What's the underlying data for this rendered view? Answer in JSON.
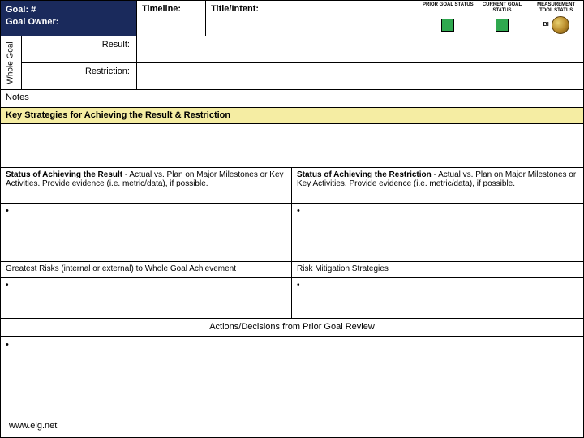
{
  "header": {
    "goal_label": "Goal: #",
    "owner_label": "Goal Owner:",
    "timeline_label": "Timeline:",
    "title_label": "Title/Intent:",
    "status": {
      "prior": {
        "label": "PRIOR GOAL STATUS",
        "color": "#2fa84f"
      },
      "current": {
        "label": "CURRENT GOAL STATUS",
        "color": "#2fa84f"
      },
      "measurement": {
        "label": "MEASUREMENT TOOL STATUS",
        "bi": "BI"
      }
    }
  },
  "whole_goal": {
    "vertical_label": "Whole Goal",
    "result_label": "Result:",
    "restriction_label": "Restriction:"
  },
  "notes_label": "Notes",
  "strategies_header": "Key Strategies for Achieving the Result & Restriction",
  "status_result": {
    "bold": "Status of Achieving the Result",
    "rest": " - Actual vs. Plan on Major Milestones or Key Activities. Provide evidence (i.e. metric/data), if possible."
  },
  "status_restriction": {
    "bold": "Status of Achieving the Restriction",
    "rest": " - Actual vs. Plan on Major Milestones or Key Activities. Provide evidence (i.e. metric/data), if possible."
  },
  "bullet": "•",
  "risks_label": "Greatest Risks (internal or external) to Whole Goal Achievement",
  "mitigation_label": "Risk Mitigation Strategies",
  "actions_label": "Actions/Decisions from Prior Goal Review",
  "footer": "www.elg.net",
  "colors": {
    "header_bg": "#1a2a5c",
    "highlight_bg": "#f5eda3",
    "border": "#000000"
  }
}
